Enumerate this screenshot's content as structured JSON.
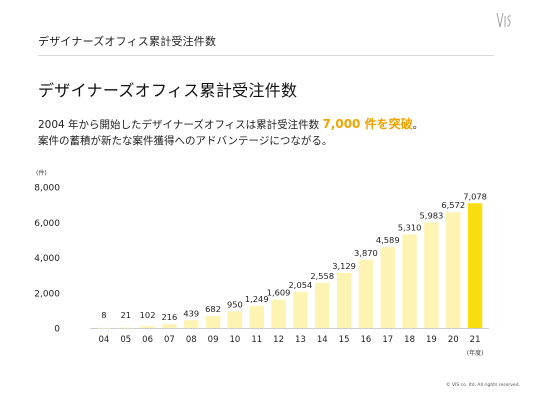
{
  "header": {
    "title": "デザイナーズオフィス累計受注件数"
  },
  "logo": {
    "icon": "vis-logo-icon"
  },
  "main": {
    "title": "デザイナーズオフィス累計受注件数",
    "desc_prefix": "2004 年から開始したデザイナーズオフィスは累計受注件数 ",
    "desc_highlight": "7,000 件を突破",
    "desc_suffix": "。",
    "desc_line2": "案件の蓄積が新たな案件獲得へのアドバンテージにつながる。"
  },
  "colors": {
    "bar": "#fdf3b3",
    "bar_highlight": "#f9dd0f",
    "accent": "#f0a400",
    "axis": "#bdbdbd"
  },
  "chart_data": {
    "type": "bar",
    "y_unit_label": "(件)",
    "x_unit_label": "(年度)",
    "categories": [
      "04",
      "05",
      "06",
      "07",
      "08",
      "09",
      "10",
      "11",
      "12",
      "13",
      "14",
      "15",
      "16",
      "17",
      "18",
      "19",
      "20",
      "21"
    ],
    "values": [
      8,
      21,
      102,
      216,
      439,
      682,
      950,
      1249,
      1609,
      2054,
      2558,
      3129,
      3870,
      4589,
      5310,
      5983,
      6572,
      7078
    ],
    "value_labels": [
      "8",
      "21",
      "102",
      "216",
      "439",
      "682",
      "950",
      "1,249",
      "1,609",
      "2,054",
      "2,558",
      "3,129",
      "3,870",
      "4,589",
      "5,310",
      "5,983",
      "6,572",
      "7,078"
    ],
    "y_ticks": [
      0,
      2000,
      4000,
      6000,
      8000
    ],
    "y_tick_labels": [
      "0",
      "2,000",
      "4,000",
      "6,000",
      "8,000"
    ],
    "ylim": [
      0,
      8000
    ],
    "highlight_index": 17
  },
  "footer": {
    "copyright": "© VIS co. ltd. All rights reserved."
  }
}
